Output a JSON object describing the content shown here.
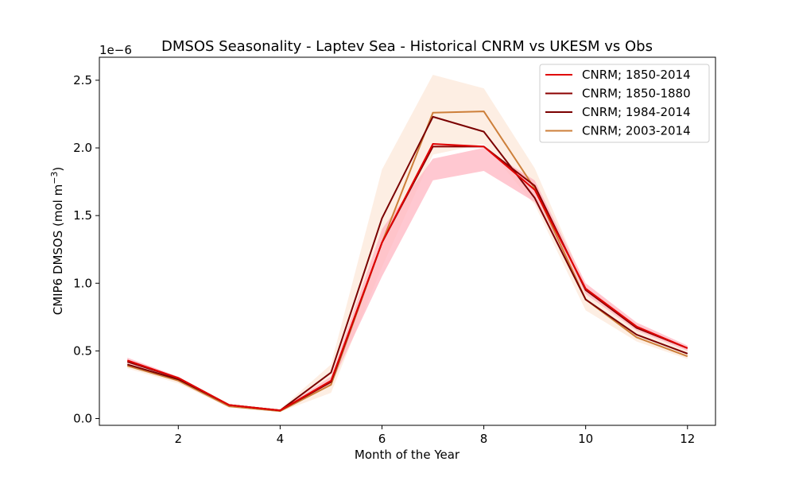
{
  "chart_data": {
    "type": "line",
    "title": "DMSOS Seasonality - Laptev Sea - Historical CNRM vs UKESM vs Obs",
    "xlabel": "Month of the Year",
    "ylabel": "CMIP6 DMSOS (mol m",
    "ylabel_exponent": "−3",
    "ylabel_suffix": ")",
    "y_offset_label": "1e−6",
    "xlim": [
      0.45,
      12.55
    ],
    "ylim": [
      -0.05,
      2.67
    ],
    "x_ticks": [
      2,
      4,
      6,
      8,
      10,
      12
    ],
    "x_tick_labels": [
      "2",
      "4",
      "6",
      "8",
      "10",
      "12"
    ],
    "y_ticks": [
      0.0,
      0.5,
      1.0,
      1.5,
      2.0,
      2.5
    ],
    "y_tick_labels": [
      "0.0",
      "0.5",
      "1.0",
      "1.5",
      "2.0",
      "2.5"
    ],
    "grid": false,
    "legend_position": "top-right",
    "x": [
      1,
      2,
      3,
      4,
      5,
      6,
      7,
      8,
      9,
      10,
      11,
      12
    ],
    "series": [
      {
        "name": "CNRM; 1850-2014",
        "color": "#e00000",
        "band_color": "#ffb6c1",
        "values": [
          0.43,
          0.3,
          0.1,
          0.06,
          0.28,
          1.3,
          2.03,
          2.01,
          1.69,
          0.96,
          0.68,
          0.52
        ],
        "band_lower": [
          0.41,
          0.29,
          0.09,
          0.055,
          0.25,
          1.05,
          1.76,
          1.83,
          1.6,
          0.92,
          0.65,
          0.5
        ],
        "band_upper": [
          0.45,
          0.31,
          0.105,
          0.065,
          0.31,
          1.4,
          1.92,
          2.0,
          1.76,
          1.0,
          0.71,
          0.54
        ]
      },
      {
        "name": "CNRM; 1850-1880",
        "color": "#8b0000",
        "values": [
          0.42,
          0.3,
          0.1,
          0.06,
          0.27,
          1.3,
          2.01,
          2.01,
          1.72,
          0.95,
          0.67,
          0.52
        ]
      },
      {
        "name": "CNRM; 1984-2014",
        "color": "#7a0000",
        "values": [
          0.4,
          0.29,
          0.1,
          0.06,
          0.34,
          1.48,
          2.23,
          2.12,
          1.63,
          0.88,
          0.62,
          0.48
        ]
      },
      {
        "name": "CNRM; 2003-2014",
        "color": "#cd7f3a",
        "band_color": "#fdeadc",
        "values": [
          0.39,
          0.28,
          0.09,
          0.055,
          0.25,
          1.3,
          2.26,
          2.27,
          1.7,
          0.88,
          0.6,
          0.46
        ],
        "band_lower": [
          0.37,
          0.26,
          0.08,
          0.05,
          0.19,
          1.12,
          1.95,
          2.03,
          1.58,
          0.8,
          0.57,
          0.44
        ],
        "band_upper": [
          0.42,
          0.31,
          0.11,
          0.07,
          0.4,
          1.84,
          2.54,
          2.44,
          1.85,
          0.98,
          0.7,
          0.52
        ]
      }
    ]
  }
}
